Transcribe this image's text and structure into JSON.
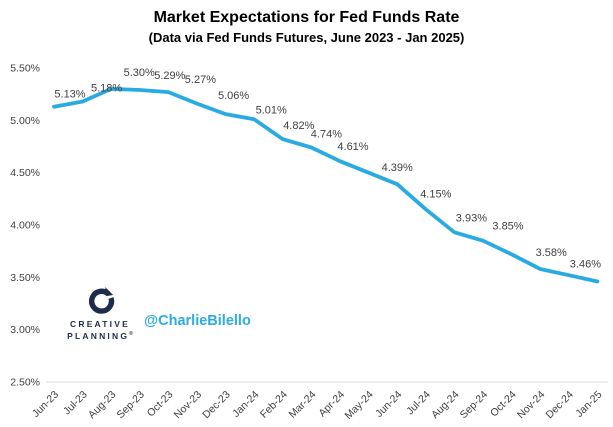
{
  "header": {
    "title": "Market Expectations for Fed Funds Rate",
    "subtitle": "(Data via Fed Funds Futures, June 2023 - Jan 2025)"
  },
  "chart_data": {
    "type": "line",
    "title": "Market Expectations for Fed Funds Rate",
    "subtitle": "(Data via Fed Funds Futures, June 2023 - Jan 2025)",
    "categories": [
      "Jun-23",
      "Jul-23",
      "Aug-23",
      "Sep-23",
      "Oct-23",
      "Nov-23",
      "Dec-23",
      "Jan-24",
      "Feb-24",
      "Mar-24",
      "Apr-24",
      "May-24",
      "Jun-24",
      "Jul-24",
      "Aug-24",
      "Sep-24",
      "Oct-24",
      "Nov-24",
      "Dec-24",
      "Jan-25"
    ],
    "values": [
      5.13,
      5.18,
      5.3,
      5.29,
      5.27,
      5.16,
      5.06,
      5.01,
      4.82,
      4.74,
      4.61,
      4.5,
      4.39,
      4.15,
      3.93,
      3.85,
      3.72,
      3.58,
      3.52,
      3.46
    ],
    "point_labels": [
      "5.13%",
      "5.18%",
      "5.30%",
      "5.29%",
      "5.27%",
      null,
      "5.06%",
      "5.01%",
      "4.82%",
      "4.74%",
      "4.61%",
      null,
      "4.39%",
      "4.15%",
      "3.93%",
      "3.85%",
      null,
      "3.58%",
      null,
      "3.46%"
    ],
    "label_offsets": [
      [
        16,
        -9
      ],
      [
        24,
        -10
      ],
      [
        28,
        -13
      ],
      [
        30,
        -11
      ],
      [
        32,
        -9
      ],
      null,
      [
        8,
        -15
      ],
      [
        17,
        -6
      ],
      [
        16,
        -10
      ],
      [
        15,
        -10
      ],
      [
        13,
        -11
      ],
      null,
      [
        0,
        -13
      ],
      [
        10,
        -12
      ],
      [
        17,
        -11
      ],
      [
        25,
        -11
      ],
      null,
      [
        11,
        -13
      ],
      null,
      [
        -12,
        -14
      ]
    ],
    "y_ticks": [
      "5.50%",
      "5.00%",
      "4.50%",
      "4.00%",
      "3.50%",
      "3.00%",
      "2.50%"
    ],
    "ylim": [
      2.5,
      5.5
    ],
    "xlabel": "",
    "ylabel": "",
    "grid": false,
    "legend": "none",
    "line_color": "#29ABE2",
    "label_color": "#404040",
    "tick_color": "#404040",
    "axis_color": "#D9D9D9"
  },
  "branding": {
    "logo_line1": "CREATIVE",
    "logo_line2": "PLANNING",
    "logo_reg": "®",
    "logo_color": "#1E2C4C",
    "handle": "@CharlieBilello",
    "handle_color": "#2CACE3"
  }
}
